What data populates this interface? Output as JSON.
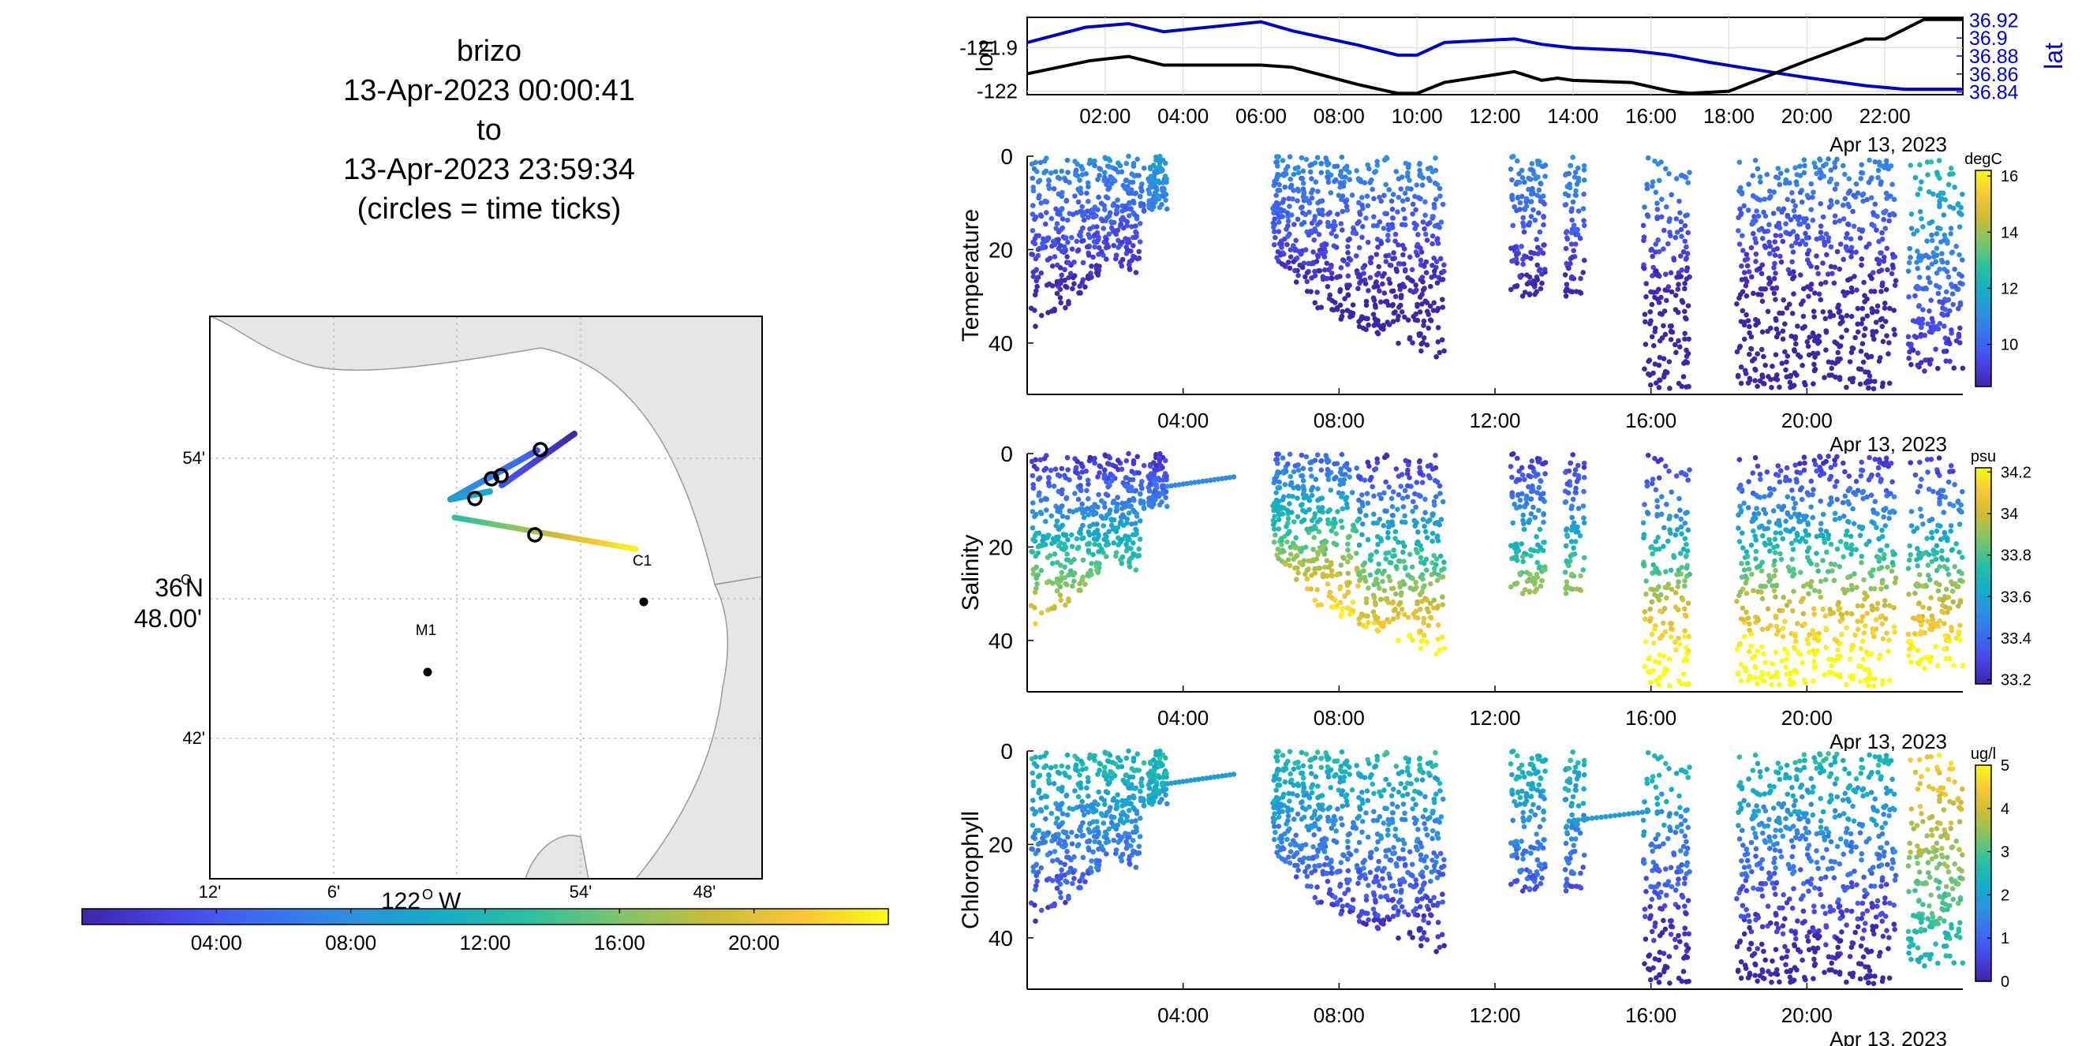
{
  "title": {
    "vehicle": "brizo",
    "start": "13-Apr-2023 00:00:41",
    "to": "to",
    "end": "13-Apr-2023 23:59:34",
    "note": "(circles = time ticks)"
  },
  "colors": {
    "parula": [
      "#3e26a8",
      "#4744e9",
      "#3b6df1",
      "#2d90e0",
      "#11aec7",
      "#2bc0a0",
      "#7dc56a",
      "#c9bc37",
      "#f7c635",
      "#f9fb15"
    ],
    "latline": "#0000cc",
    "lonline": "#000000",
    "land": "#e6e6e6",
    "coast": "#9a9a9a"
  },
  "chart_data": [
    {
      "type": "map",
      "lon_ticks": [
        "12'",
        "6'",
        "54'",
        "48'"
      ],
      "lon_label": "122",
      "lon_label_suffix": "W",
      "lat_ticks": [
        "54'",
        "42'"
      ],
      "lat_main": "36",
      "lat_main_suffix": "N",
      "lat_main_min": "48.00'",
      "stations": [
        {
          "name": "M1"
        },
        {
          "name": "C1"
        }
      ],
      "time_colorbar": {
        "ticks": [
          "04:00",
          "08:00",
          "12:00",
          "16:00",
          "20:00"
        ],
        "range_hours": [
          0,
          24
        ]
      }
    },
    {
      "type": "line",
      "x_unit": "hours",
      "x_ticks": [
        "02:00",
        "04:00",
        "06:00",
        "08:00",
        "10:00",
        "12:00",
        "14:00",
        "16:00",
        "18:00",
        "20:00",
        "22:00"
      ],
      "date_label": "Apr 13, 2023",
      "left_axis": {
        "label": "lon",
        "ticks": [
          "-121.9",
          "-122"
        ],
        "ylim": [
          -122.008,
          -121.83
        ]
      },
      "right_axis": {
        "label": "lat",
        "ticks": [
          "36.92",
          "36.9",
          "36.88",
          "36.86",
          "36.84"
        ],
        "ylim": [
          36.837,
          36.923
        ]
      },
      "series": [
        {
          "name": "lon",
          "x": [
            0,
            1.6,
            2.6,
            3.5,
            6.0,
            6.8,
            8.5,
            9.5,
            10.0,
            10.7,
            12.5,
            13.2,
            13.6,
            14.0,
            15.5,
            16.5,
            17.0,
            18.0,
            20.0,
            21.5,
            22.0,
            23.0,
            24.0
          ],
          "y": [
            -121.96,
            -121.93,
            -121.92,
            -121.94,
            -121.94,
            -121.945,
            -121.985,
            -122.005,
            -122.005,
            -121.98,
            -121.955,
            -121.975,
            -121.97,
            -121.975,
            -121.98,
            -122.0,
            -122.005,
            -122.0,
            -121.93,
            -121.88,
            -121.88,
            -121.835,
            -121.835
          ]
        },
        {
          "name": "lat",
          "x": [
            0,
            1.5,
            2.6,
            3.5,
            6.0,
            6.8,
            8.5,
            9.5,
            10.0,
            10.7,
            12.5,
            13.2,
            14.0,
            15.5,
            16.5,
            17.5,
            18.5,
            20.0,
            21.5,
            22.5,
            24.0
          ],
          "y": [
            36.895,
            36.912,
            36.916,
            36.907,
            36.918,
            36.908,
            36.892,
            36.881,
            36.881,
            36.895,
            36.899,
            36.893,
            36.889,
            36.886,
            36.881,
            36.873,
            36.866,
            36.856,
            36.847,
            36.843,
            36.843
          ]
        }
      ]
    },
    {
      "type": "scatter",
      "name": "Temperature",
      "ylabel": "Temperature",
      "unit": "degC",
      "clim": [
        8.5,
        16.2
      ],
      "cticks": [
        "16",
        "14",
        "12",
        "10"
      ],
      "cticks_values": [
        16,
        14,
        12,
        10
      ],
      "y_ticks": [
        "0",
        "20",
        "40"
      ],
      "ylim": [
        0,
        51
      ],
      "x_ticks": [
        "04:00",
        "08:00",
        "12:00",
        "16:00",
        "20:00"
      ],
      "date_label": "Apr 13, 2023"
    },
    {
      "type": "scatter",
      "name": "Salinity",
      "ylabel": "Salinity",
      "unit": "psu",
      "clim": [
        33.18,
        34.22
      ],
      "cticks": [
        "34.2",
        "34",
        "33.8",
        "33.6",
        "33.4",
        "33.2"
      ],
      "cticks_values": [
        34.2,
        34.0,
        33.8,
        33.6,
        33.4,
        33.2
      ],
      "y_ticks": [
        "0",
        "20",
        "40"
      ],
      "ylim": [
        0,
        51
      ],
      "x_ticks": [
        "04:00",
        "08:00",
        "12:00",
        "16:00",
        "20:00"
      ],
      "date_label": "Apr 13, 2023"
    },
    {
      "type": "scatter",
      "name": "Chlorophyll",
      "ylabel": "Chlorophyll",
      "unit": "ug/l",
      "clim": [
        0,
        5
      ],
      "cticks": [
        "5",
        "4",
        "3",
        "2",
        "1",
        "0"
      ],
      "cticks_values": [
        5,
        4,
        3,
        2,
        1,
        0
      ],
      "y_ticks": [
        "0",
        "20",
        "40"
      ],
      "ylim": [
        0,
        51
      ],
      "x_ticks": [
        "04:00",
        "08:00",
        "12:00",
        "16:00",
        "20:00"
      ],
      "date_label": "Apr 13, 2023"
    }
  ]
}
